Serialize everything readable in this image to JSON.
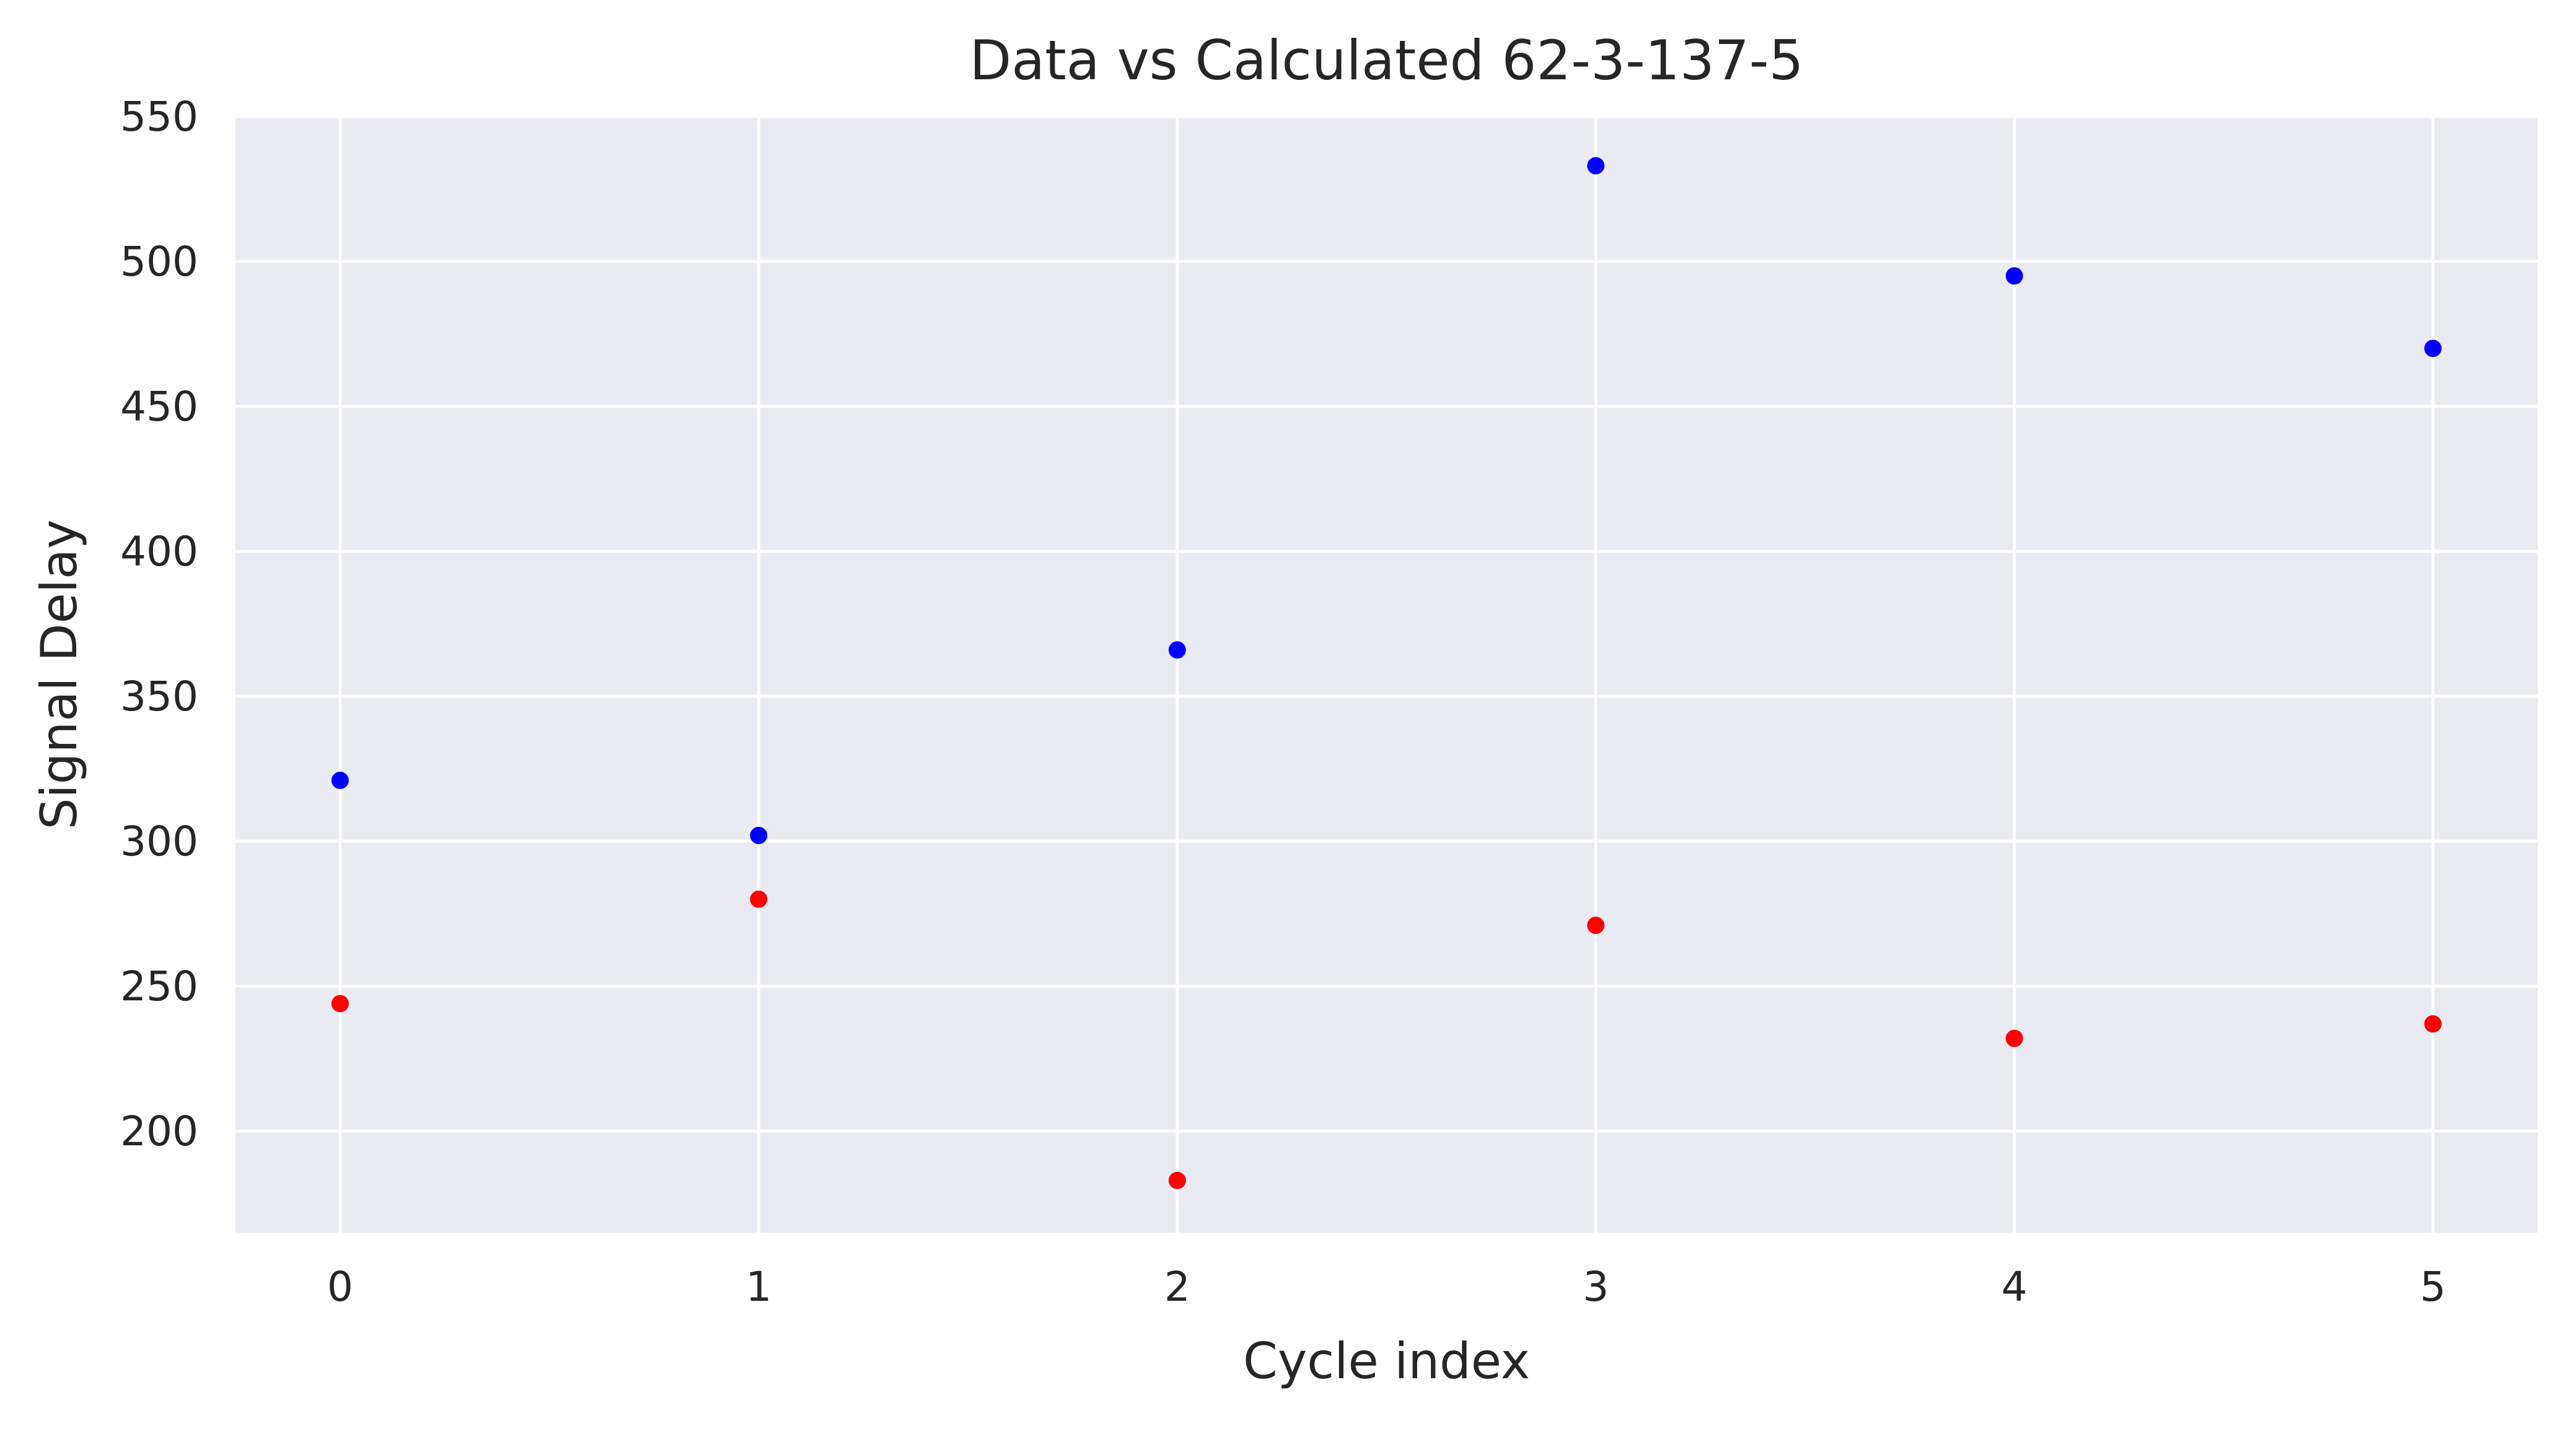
{
  "chart_data": {
    "type": "scatter",
    "title": "Data vs Calculated 62-3-137-5",
    "xlabel": "Cycle index",
    "ylabel": "Signal Delay",
    "x_ticks": [
      0,
      1,
      2,
      3,
      4,
      5
    ],
    "y_ticks": [
      200,
      250,
      300,
      350,
      400,
      450,
      500,
      550
    ],
    "xlim": [
      -0.25,
      5.25
    ],
    "ylim": [
      165,
      550
    ],
    "grid": true,
    "legend": "none",
    "background_color": "#eaeaf2",
    "series": [
      {
        "color": "#0000ff",
        "x": [
          0,
          1,
          2,
          3,
          4,
          5
        ],
        "y": [
          321,
          302,
          366,
          533,
          495,
          470
        ]
      },
      {
        "color": "#ff0000",
        "x": [
          0,
          1,
          2,
          3,
          4,
          5
        ],
        "y": [
          244,
          280,
          183,
          271,
          232,
          237
        ]
      }
    ]
  }
}
